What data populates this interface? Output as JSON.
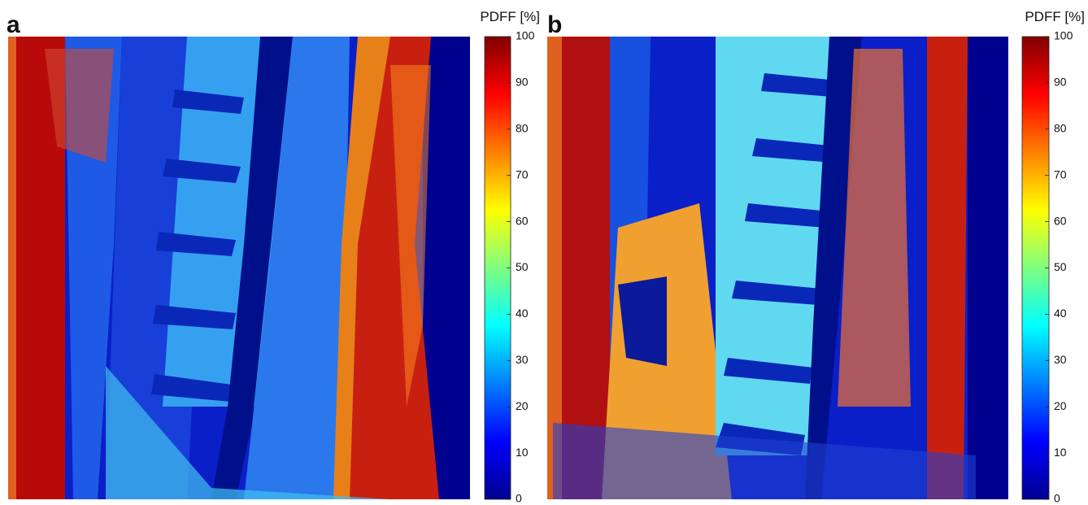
{
  "panels": [
    {
      "label": "a",
      "colorbar": {
        "title": "PDFF [%]",
        "lim": [
          0,
          100
        ],
        "ticks": [
          0,
          10,
          20,
          30,
          40,
          50,
          60,
          70,
          80,
          90,
          100
        ]
      }
    },
    {
      "label": "b",
      "colorbar": {
        "title": "PDFF [%]",
        "lim": [
          0,
          100
        ],
        "ticks": [
          0,
          10,
          20,
          30,
          40,
          50,
          60,
          70,
          80,
          90,
          100
        ]
      }
    }
  ]
}
